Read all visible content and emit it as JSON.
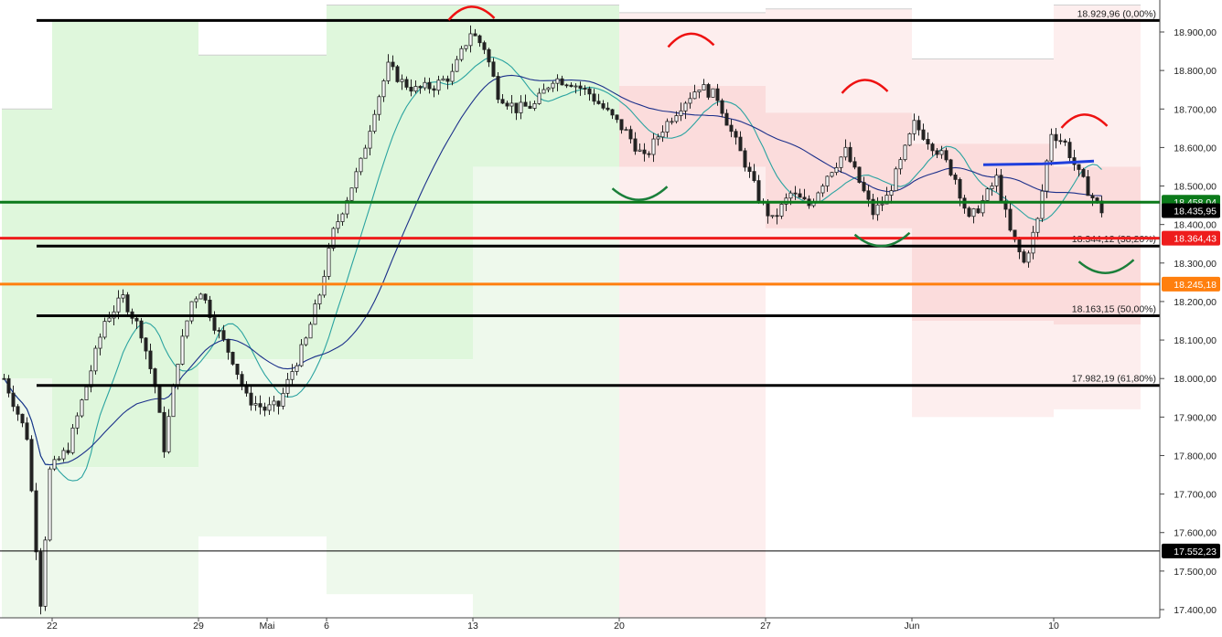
{
  "chart_data": {
    "type": "candlestick",
    "instrument_price_axis": {
      "ylim": [
        17380,
        18970
      ],
      "ticks": [
        18900,
        18800,
        18700,
        18600,
        18500,
        18400,
        18300,
        18200,
        18100,
        18000,
        17900,
        17800,
        17700,
        17600,
        17500,
        17400
      ],
      "tick_labels": [
        "18.900,00",
        "18.800,00",
        "18.700,00",
        "18.600,00",
        "18.500,00",
        "18.400,00",
        "18.300,00",
        "18.200,00",
        "18.100,00",
        "18.000,00",
        "17.900,00",
        "17.800,00",
        "17.700,00",
        "17.600,00",
        "17.500,00",
        "17.400,00"
      ]
    },
    "x_axis": {
      "labels": [
        "22",
        "29",
        "Mai",
        "6",
        "13",
        "20",
        "27",
        "Jun",
        "10"
      ],
      "label_bar_index": [
        11,
        43,
        58,
        71,
        103,
        135,
        167,
        199,
        230
      ],
      "bar_count": 254
    },
    "fibonacci_levels": [
      {
        "value": 18929.96,
        "label": "18.929,96 (0,00%)",
        "color": "#000000"
      },
      {
        "value": 18344.12,
        "label": "18.344,12 (38,20%)",
        "color": "#000000"
      },
      {
        "value": 18163.15,
        "label": "18.163,15 (50,00%)",
        "color": "#000000"
      },
      {
        "value": 17982.19,
        "label": "17.982,19 (61,80%)",
        "color": "#000000"
      }
    ],
    "horizontal_levels": [
      {
        "value": 18458.04,
        "label": "18.458,04",
        "color": "#0b7a1a",
        "badge": "#0b7a1a"
      },
      {
        "value": 18364.43,
        "label": "18.364,43",
        "color": "#ee1c1c",
        "badge": "#ee1c1c"
      },
      {
        "value": 18245.18,
        "label": "18.245,18",
        "color": "#ff7f0e",
        "badge": "#ff7f0e"
      },
      {
        "value": 17552.23,
        "label": "17.552,23",
        "color": "#000000",
        "badge": "#000000"
      }
    ],
    "last_price": {
      "value": 18435.95,
      "label": "18.435,95",
      "badge": "#000000"
    },
    "trend_line": {
      "value": 18560,
      "color": "#1f3fdd"
    },
    "weekly_boxes": [
      {
        "start": 0,
        "end": 11,
        "open": 18000,
        "close": 18700,
        "low": 17380,
        "high": 18700
      },
      {
        "start": 11,
        "end": 43,
        "open": 17770,
        "close": 18930,
        "low": 17380,
        "high": 18930
      },
      {
        "start": 43,
        "end": 71,
        "open": 18050,
        "close": 18840,
        "low": 17590,
        "high": 18840
      },
      {
        "start": 71,
        "end": 103,
        "open": 18050,
        "close": 18970,
        "low": 17440,
        "high": 18970
      },
      {
        "start": 103,
        "end": 135,
        "open": 18550,
        "close": 18970,
        "low": 17380,
        "high": 18970
      },
      {
        "start": 135,
        "end": 167,
        "open": 18760,
        "close": 18550,
        "low": 17380,
        "high": 18950
      },
      {
        "start": 167,
        "end": 199,
        "open": 18690,
        "close": 18390,
        "low": 18240,
        "high": 18960
      },
      {
        "start": 199,
        "end": 230,
        "open": 18610,
        "close": 18150,
        "low": 17900,
        "high": 18830
      },
      {
        "start": 230,
        "end": 249,
        "open": 18550,
        "close": 18140,
        "low": 17920,
        "high": 18970
      }
    ],
    "week_box_colors": {
      "up": "#dff7dc",
      "down": "#fbdcdc",
      "up_light": "#eef9ec",
      "down_light": "#fdeeee"
    },
    "annotations": {
      "red_arcs": [
        [
          102,
          18950
        ],
        [
          150,
          18880
        ],
        [
          188,
          18760
        ],
        [
          236,
          18670
        ]
      ],
      "green_arcs": [
        [
          139,
          18470
        ],
        [
          192,
          18350
        ],
        [
          241,
          18280
        ]
      ]
    },
    "moving_average_colors": {
      "fast": "#2aa3a0",
      "slow": "#1b2f8a"
    },
    "grid": false
  }
}
